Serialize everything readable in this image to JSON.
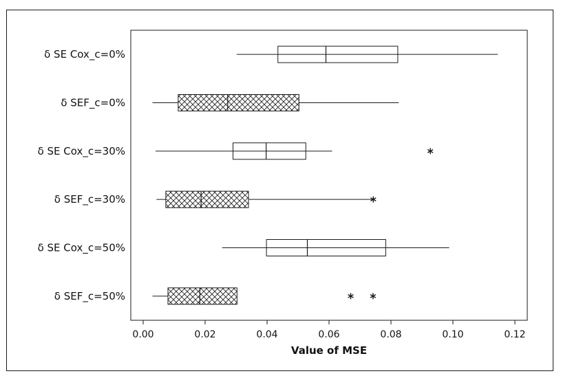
{
  "chart_data": {
    "type": "boxplot",
    "orientation": "horizontal",
    "title": "",
    "xlabel": "Value of MSE",
    "ylabel": "",
    "xlim": [
      -0.004,
      0.124
    ],
    "xticks": [
      0.0,
      0.02,
      0.04,
      0.06,
      0.08,
      0.1,
      0.12
    ],
    "xtick_labels": [
      "0.00",
      "0.02",
      "0.04",
      "0.06",
      "0.08",
      "0.10",
      "0.12"
    ],
    "grid": false,
    "categories": [
      "δ SE Cox_c=0%",
      "δ SEF_c=0%",
      "δ SE Cox_c=30%",
      "δ SEF_c=30%",
      "δ SE Cox_c=50%",
      "δ SEF_c=50%"
    ],
    "boxes": [
      {
        "label": "δ SE Cox_c=0%",
        "whisker_low": 0.0302,
        "q1": 0.0435,
        "median": 0.059,
        "q3": 0.0822,
        "whisker_high": 0.1145,
        "outliers": [],
        "pattern": "plain"
      },
      {
        "label": "δ SEF_c=0%",
        "whisker_low": 0.003,
        "q1": 0.0113,
        "median": 0.0273,
        "q3": 0.0503,
        "whisker_high": 0.0825,
        "outliers": [],
        "pattern": "crosshatch"
      },
      {
        "label": "δ SE Cox_c=30%",
        "whisker_low": 0.004,
        "q1": 0.029,
        "median": 0.0397,
        "q3": 0.0525,
        "whisker_high": 0.061,
        "outliers": [
          0.0927
        ],
        "pattern": "plain"
      },
      {
        "label": "δ SEF_c=30%",
        "whisker_low": 0.0043,
        "q1": 0.0073,
        "median": 0.0187,
        "q3": 0.034,
        "whisker_high": 0.0743,
        "outliers": [
          0.0743
        ],
        "pattern": "crosshatch"
      },
      {
        "label": "δ SE Cox_c=50%",
        "whisker_low": 0.0255,
        "q1": 0.0398,
        "median": 0.053,
        "q3": 0.0783,
        "whisker_high": 0.0988,
        "outliers": [],
        "pattern": "plain"
      },
      {
        "label": "δ SEF_c=50%",
        "whisker_low": 0.003,
        "q1": 0.008,
        "median": 0.0183,
        "q3": 0.0303,
        "whisker_high": 0.0303,
        "outliers": [
          0.067,
          0.0742
        ],
        "pattern": "crosshatch"
      }
    ],
    "colors": {
      "box_fill": "#ffffff",
      "stroke": "#1a1a1a",
      "hatch": "#222222"
    }
  }
}
